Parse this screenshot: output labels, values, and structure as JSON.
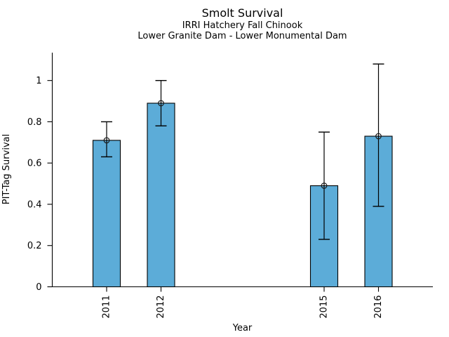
{
  "figure": {
    "background_color": "#ffffff",
    "text_color": "#000000"
  },
  "chart_data": {
    "type": "bar",
    "title": "Smolt Survival",
    "subtitle_line1": "IRRI Hatchery Fall Chinook",
    "subtitle_line2": "Lower Granite Dam - Lower Monumental Dam",
    "xlabel": "Year",
    "ylabel": "PIT-Tag Survival",
    "categories": [
      "2011",
      "2012",
      "2015",
      "2016"
    ],
    "x_numeric": [
      2011,
      2012,
      2015,
      2016
    ],
    "values": [
      0.71,
      0.89,
      0.49,
      0.73
    ],
    "error_low": [
      0.63,
      0.78,
      0.23,
      0.39
    ],
    "error_high": [
      0.8,
      1.0,
      0.75,
      1.08
    ],
    "ytick_values": [
      0,
      0.2,
      0.4,
      0.6,
      0.8,
      1
    ],
    "ytick_labels": [
      "0",
      "0.2",
      "0.4",
      "0.6",
      "0.8",
      "1"
    ],
    "xlim": [
      2010,
      2017
    ],
    "ylim": [
      0,
      1.135
    ],
    "grid": false,
    "legend_position": "none",
    "bar_color": "#5CACD8",
    "bar_edge_color": "#000000",
    "error_bar_color": "#000000",
    "marker_style": "open-circle",
    "marker_color": "#1a1a1a",
    "axis_color": "#000000"
  }
}
